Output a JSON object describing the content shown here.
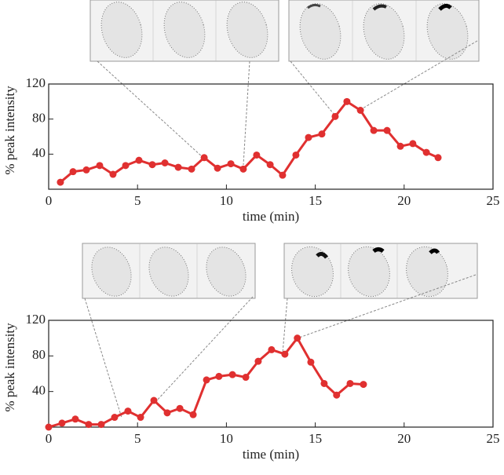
{
  "chart_data": [
    {
      "type": "line",
      "xlabel": "time (min)",
      "ylabel": "% peak intensity",
      "color": "#e03030",
      "x": [
        0.66,
        1.37,
        2.12,
        2.87,
        3.62,
        4.33,
        5.08,
        5.83,
        6.54,
        7.29,
        8.04,
        8.75,
        9.5,
        10.25,
        10.95,
        11.7,
        12.46,
        13.16,
        13.91,
        14.62,
        15.37,
        16.12,
        16.78,
        17.54,
        18.29,
        19.04,
        19.79,
        20.49,
        21.25,
        21.91
      ],
      "values": [
        8,
        20,
        22,
        27,
        17,
        27,
        33,
        28,
        30,
        25,
        23,
        36,
        24,
        29,
        23,
        39,
        28,
        16,
        39,
        59,
        63,
        83,
        100,
        90,
        67,
        67,
        49,
        52,
        42,
        36
      ],
      "xlim": [
        0,
        25
      ],
      "ylim": [
        0,
        120
      ],
      "xticks": [
        0,
        5,
        10,
        15,
        20,
        25
      ],
      "yticks": [
        40,
        80,
        120
      ]
    },
    {
      "type": "line",
      "xlabel": "time (min)",
      "ylabel": "% peak intensity",
      "color": "#e03030",
      "x": [
        0,
        0.75,
        1.5,
        2.25,
        2.96,
        3.71,
        4.46,
        5.17,
        5.92,
        6.67,
        7.38,
        8.13,
        8.88,
        9.58,
        10.34,
        11.09,
        11.79,
        12.54,
        13.29,
        13.99,
        14.75,
        15.5,
        16.2,
        16.96,
        17.71
      ],
      "values": [
        0,
        4.5,
        9,
        3,
        3,
        11,
        18,
        11,
        30,
        16,
        21,
        14,
        53,
        57,
        59,
        56,
        74,
        87,
        82,
        100,
        73,
        49,
        36,
        49,
        48
      ],
      "xlim": [
        0,
        25
      ],
      "ylim": [
        0,
        120
      ],
      "xticks": [
        0,
        5,
        10,
        15,
        20,
        25
      ],
      "yticks": [
        40,
        80,
        120
      ]
    }
  ]
}
